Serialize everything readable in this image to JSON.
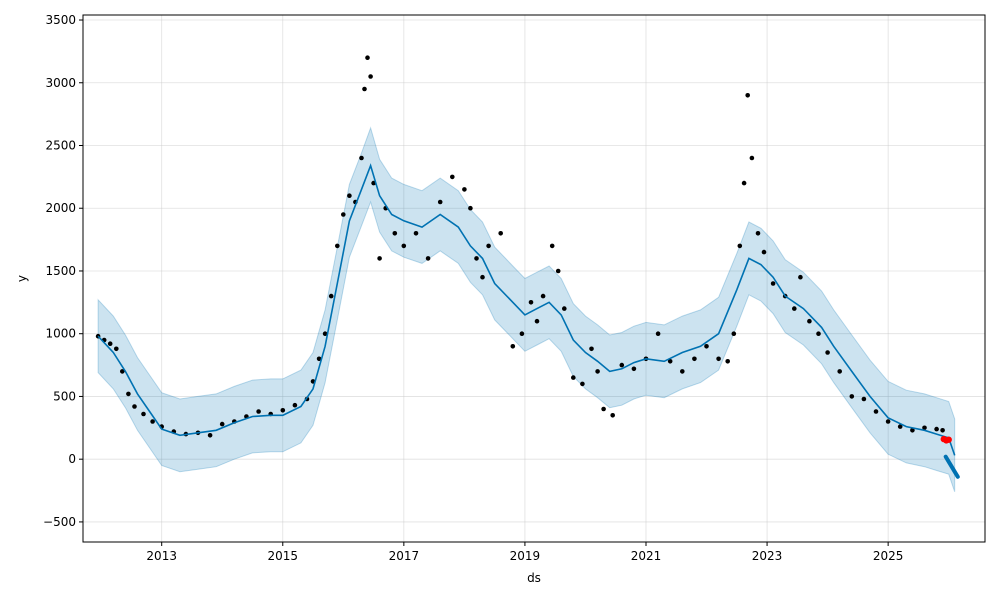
{
  "chart_data": {
    "type": "line",
    "title": "",
    "xlabel": "ds",
    "ylabel": "y",
    "xlim": [
      2011.7,
      2026.6
    ],
    "ylim": [
      -660,
      3540
    ],
    "x_ticks": [
      2013,
      2015,
      2017,
      2019,
      2021,
      2023,
      2025
    ],
    "x_tick_labels": [
      "2013",
      "2015",
      "2017",
      "2019",
      "2021",
      "2023",
      "2025"
    ],
    "y_ticks": [
      -500,
      0,
      500,
      1000,
      1500,
      2000,
      2500,
      3000,
      3500
    ],
    "y_tick_labels": [
      "−500",
      "0",
      "500",
      "1000",
      "1500",
      "2000",
      "2500",
      "3000",
      "3500"
    ],
    "grid": true,
    "colors": {
      "observed": "#000000",
      "forecast": "#0072B2",
      "interval": "#0072B2",
      "holdout": "#ff0000",
      "grid": "#cccccc",
      "axes": "#000000"
    },
    "series": [
      {
        "kind": "observed_points",
        "x": [
          2011.95,
          2012.05,
          2012.15,
          2012.25,
          2012.35,
          2012.45,
          2012.55,
          2012.7,
          2012.85,
          2013.0,
          2013.2,
          2013.4,
          2013.6,
          2013.8,
          2014.0,
          2014.2,
          2014.4,
          2014.6,
          2014.8,
          2015.0,
          2015.2,
          2015.4,
          2015.5,
          2015.6,
          2015.7,
          2015.8,
          2015.9,
          2016.0,
          2016.1,
          2016.2,
          2016.3,
          2016.35,
          2016.4,
          2016.45,
          2016.5,
          2016.6,
          2016.7,
          2016.85,
          2017.0,
          2017.2,
          2017.4,
          2017.6,
          2017.8,
          2018.0,
          2018.1,
          2018.2,
          2018.3,
          2018.4,
          2018.6,
          2018.8,
          2018.95,
          2019.1,
          2019.2,
          2019.3,
          2019.45,
          2019.55,
          2019.65,
          2019.8,
          2019.95,
          2020.1,
          2020.2,
          2020.3,
          2020.45,
          2020.6,
          2020.8,
          2021.0,
          2021.2,
          2021.4,
          2021.6,
          2021.8,
          2022.0,
          2022.2,
          2022.35,
          2022.45,
          2022.55,
          2022.62,
          2022.68,
          2022.75,
          2022.85,
          2022.95,
          2023.1,
          2023.3,
          2023.45,
          2023.55,
          2023.7,
          2023.85,
          2024.0,
          2024.2,
          2024.4,
          2024.6,
          2024.8,
          2025.0,
          2025.2,
          2025.4,
          2025.6,
          2025.8,
          2025.9
        ],
        "y": [
          980,
          950,
          920,
          880,
          700,
          520,
          420,
          360,
          300,
          260,
          220,
          200,
          210,
          190,
          280,
          300,
          340,
          380,
          360,
          390,
          430,
          480,
          620,
          800,
          1000,
          1300,
          1700,
          1950,
          2100,
          2050,
          2400,
          2950,
          3200,
          3050,
          2200,
          1600,
          2000,
          1800,
          1700,
          1800,
          1600,
          2050,
          2250,
          2150,
          2000,
          1600,
          1450,
          1700,
          1800,
          900,
          1000,
          1250,
          1100,
          1300,
          1700,
          1500,
          1200,
          650,
          600,
          880,
          700,
          400,
          350,
          750,
          720,
          800,
          1000,
          780,
          700,
          800,
          900,
          800,
          780,
          1000,
          1700,
          2200,
          2900,
          2400,
          1800,
          1650,
          1400,
          1300,
          1200,
          1450,
          1100,
          1000,
          850,
          700,
          500,
          480,
          380,
          300,
          260,
          230,
          250,
          240,
          230
        ]
      },
      {
        "kind": "forecast_line",
        "x": [
          2011.95,
          2012.2,
          2012.4,
          2012.6,
          2012.8,
          2013.0,
          2013.3,
          2013.6,
          2013.9,
          2014.2,
          2014.5,
          2014.8,
          2015.0,
          2015.3,
          2015.5,
          2015.7,
          2015.9,
          2016.1,
          2016.3,
          2016.45,
          2016.6,
          2016.8,
          2017.0,
          2017.3,
          2017.6,
          2017.9,
          2018.1,
          2018.3,
          2018.5,
          2018.8,
          2019.0,
          2019.2,
          2019.4,
          2019.6,
          2019.8,
          2020.0,
          2020.2,
          2020.4,
          2020.6,
          2020.8,
          2021.0,
          2021.3,
          2021.6,
          2021.9,
          2022.2,
          2022.5,
          2022.7,
          2022.9,
          2023.1,
          2023.3,
          2023.6,
          2023.9,
          2024.1,
          2024.4,
          2024.7,
          2025.0,
          2025.3,
          2025.6,
          2025.8,
          2026.0,
          2026.1
        ],
        "y": [
          980,
          850,
          700,
          520,
          380,
          240,
          190,
          210,
          230,
          290,
          340,
          350,
          350,
          420,
          560,
          900,
          1400,
          1900,
          2150,
          2340,
          2100,
          1950,
          1900,
          1850,
          1950,
          1850,
          1700,
          1600,
          1400,
          1250,
          1150,
          1200,
          1250,
          1150,
          950,
          850,
          780,
          700,
          720,
          770,
          800,
          780,
          850,
          900,
          1000,
          1350,
          1600,
          1550,
          1450,
          1300,
          1200,
          1050,
          900,
          700,
          500,
          330,
          260,
          230,
          200,
          170,
          30
        ]
      },
      {
        "kind": "forecast_interval",
        "x": [
          2011.95,
          2012.2,
          2012.4,
          2012.6,
          2012.8,
          2013.0,
          2013.3,
          2013.6,
          2013.9,
          2014.2,
          2014.5,
          2014.8,
          2015.0,
          2015.3,
          2015.5,
          2015.7,
          2015.9,
          2016.1,
          2016.3,
          2016.45,
          2016.6,
          2016.8,
          2017.0,
          2017.3,
          2017.6,
          2017.9,
          2018.1,
          2018.3,
          2018.5,
          2018.8,
          2019.0,
          2019.2,
          2019.4,
          2019.6,
          2019.8,
          2020.0,
          2020.2,
          2020.4,
          2020.6,
          2020.8,
          2021.0,
          2021.3,
          2021.6,
          2021.9,
          2022.2,
          2022.5,
          2022.7,
          2022.9,
          2023.1,
          2023.3,
          2023.6,
          2023.9,
          2024.1,
          2024.4,
          2024.7,
          2025.0,
          2025.3,
          2025.6,
          2025.8,
          2026.0,
          2026.1
        ],
        "upper": [
          1270,
          1140,
          990,
          810,
          670,
          530,
          480,
          500,
          520,
          580,
          630,
          640,
          640,
          710,
          850,
          1190,
          1690,
          2190,
          2440,
          2640,
          2390,
          2240,
          2190,
          2140,
          2240,
          2140,
          1990,
          1890,
          1690,
          1540,
          1440,
          1490,
          1540,
          1440,
          1240,
          1140,
          1070,
          990,
          1010,
          1060,
          1090,
          1070,
          1140,
          1190,
          1290,
          1640,
          1890,
          1840,
          1740,
          1590,
          1490,
          1340,
          1190,
          990,
          790,
          620,
          550,
          520,
          490,
          460,
          320
        ],
        "lower": [
          690,
          560,
          410,
          230,
          90,
          -50,
          -100,
          -80,
          -60,
          0,
          50,
          60,
          60,
          130,
          270,
          610,
          1110,
          1610,
          1860,
          2050,
          1810,
          1660,
          1610,
          1560,
          1660,
          1560,
          1410,
          1310,
          1110,
          960,
          860,
          910,
          960,
          860,
          660,
          560,
          490,
          410,
          430,
          480,
          510,
          490,
          560,
          610,
          710,
          1060,
          1310,
          1260,
          1160,
          1010,
          910,
          760,
          610,
          410,
          210,
          40,
          -30,
          -60,
          -90,
          -120,
          -260
        ]
      },
      {
        "kind": "forecast_tail",
        "x": [
          2025.95,
          2026.0,
          2026.05,
          2026.1,
          2026.15
        ],
        "y": [
          20,
          -20,
          -60,
          -100,
          -140
        ]
      },
      {
        "kind": "holdout_points",
        "x": [
          2025.92,
          2025.96,
          2026.0
        ],
        "y": [
          160,
          150,
          155
        ]
      }
    ]
  }
}
